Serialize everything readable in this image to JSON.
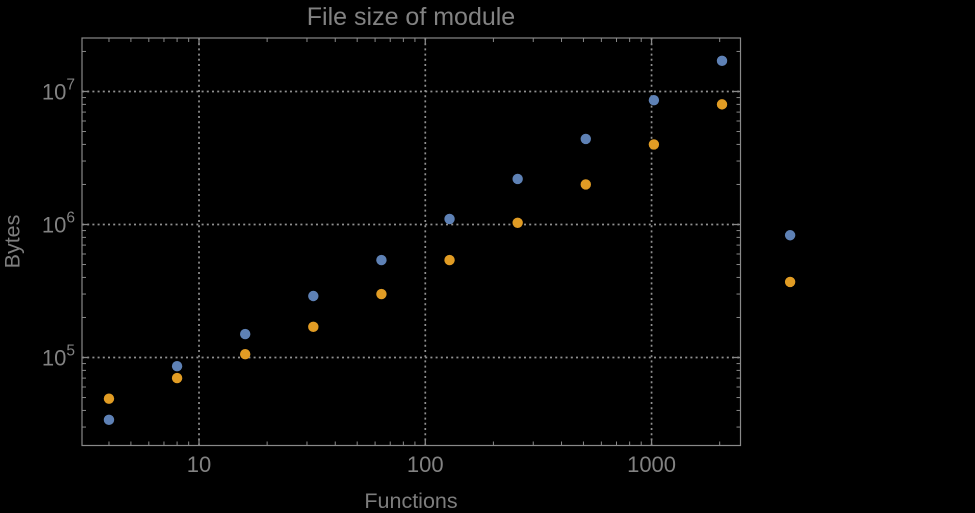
{
  "chart_data": {
    "type": "scatter",
    "title": "File size of module",
    "xlabel": "Functions",
    "ylabel": "Bytes",
    "x_scale": "log",
    "y_scale": "log",
    "grid": "dotted",
    "legend": "none",
    "xlim": [
      3.04,
      2472
    ],
    "ylim": [
      21800,
      25240000
    ],
    "x": [
      4,
      8,
      16,
      32,
      64,
      128,
      256,
      512,
      1024,
      2048,
      4096
    ],
    "series": [
      {
        "name": "series-1-blue",
        "color": "#5e81b5",
        "values": [
          34000,
          86000,
          150000,
          290000,
          540000,
          1100000,
          2200000,
          4400000,
          8600000,
          17000000,
          830000
        ]
      },
      {
        "name": "series-2-orange",
        "color": "#e19c24",
        "values": [
          49000,
          70000,
          106000,
          170000,
          300000,
          540000,
          1030000,
          2000000,
          4000000,
          8000000,
          370000
        ]
      }
    ],
    "x_ticks": [
      {
        "value": 10,
        "label": "10"
      },
      {
        "value": 100,
        "label": "100"
      },
      {
        "value": 1000,
        "label": "1000"
      }
    ],
    "y_ticks": [
      {
        "value": 100000,
        "base": "10",
        "exp": "5"
      },
      {
        "value": 1000000,
        "base": "10",
        "exp": "6"
      },
      {
        "value": 10000000,
        "base": "10",
        "exp": "7"
      }
    ]
  },
  "colors": {
    "background": "#000000",
    "frame": "#898989",
    "grid": "#909090",
    "tick_label": "#828282",
    "title_text": "#828282",
    "axis_label_text": "#7d7d7d"
  }
}
